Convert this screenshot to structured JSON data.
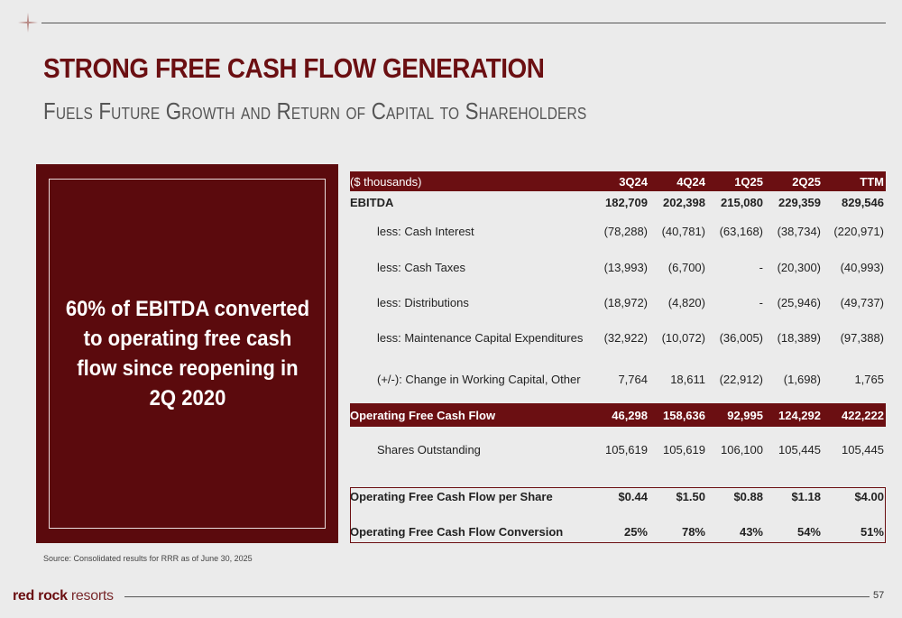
{
  "header": {
    "title": "STRONG FREE CASH FLOW GENERATION",
    "subtitle": "Fuels Future Growth and Return of Capital to Shareholders"
  },
  "callout": {
    "text": "60% of EBITDA converted to operating free cash flow since reopening in 2Q 2020"
  },
  "table": {
    "unit_label": "($ thousands)",
    "columns": [
      "3Q24",
      "4Q24",
      "1Q25",
      "2Q25",
      "TTM"
    ],
    "rows": [
      {
        "label": "EBITDA",
        "values": [
          "182,709",
          "202,398",
          "215,080",
          "229,359",
          "829,546"
        ]
      },
      {
        "label": "less: Cash Interest",
        "values": [
          "(78,288)",
          "(40,781)",
          "(63,168)",
          "(38,734)",
          "(220,971)"
        ]
      },
      {
        "label": "less: Cash Taxes",
        "values": [
          "(13,993)",
          "(6,700)",
          "-",
          "(20,300)",
          "(40,993)"
        ]
      },
      {
        "label": "less: Distributions",
        "values": [
          "(18,972)",
          "(4,820)",
          "-",
          "(25,946)",
          "(49,737)"
        ]
      },
      {
        "label": "less: Maintenance Capital Expenditures",
        "values": [
          "(32,922)",
          "(10,072)",
          "(36,005)",
          "(18,389)",
          "(97,388)"
        ]
      },
      {
        "label": "(+/-): Change in Working Capital, Other",
        "values": [
          "7,764",
          "18,611",
          "(22,912)",
          "(1,698)",
          "1,765"
        ]
      },
      {
        "label": "Operating Free Cash Flow",
        "values": [
          "46,298",
          "158,636",
          "92,995",
          "124,292",
          "422,222"
        ]
      },
      {
        "label": "Shares Outstanding",
        "values": [
          "105,619",
          "105,619",
          "106,100",
          "105,445",
          "105,445"
        ]
      },
      {
        "label": "Operating Free Cash Flow per Share",
        "values": [
          "$0.44",
          "$1.50",
          "$0.88",
          "$1.18",
          "$4.00"
        ]
      },
      {
        "label": "Operating Free Cash Flow Conversion",
        "values": [
          "25%",
          "78%",
          "43%",
          "54%",
          "51%"
        ]
      }
    ]
  },
  "footer": {
    "source": "Source: Consolidated results for RRR as of June 30, 2025",
    "logo_bold": "red rock",
    "logo_light": " resorts",
    "page_number": "57"
  },
  "colors": {
    "brand": "#6b0f12",
    "callout_bg": "#5b0a0d",
    "background": "#ebebeb"
  }
}
